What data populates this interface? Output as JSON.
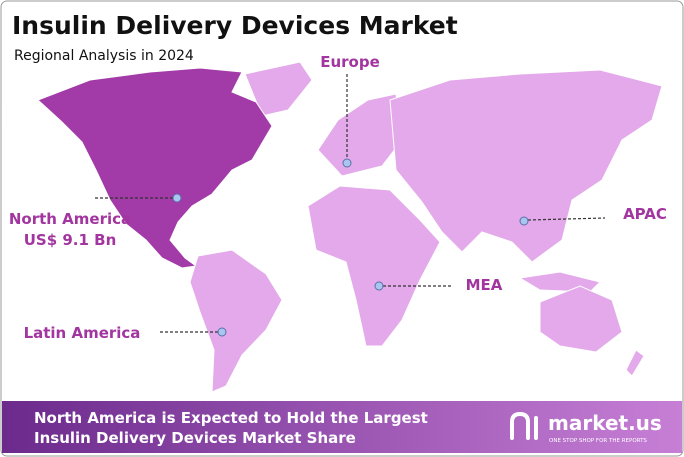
{
  "header": {
    "title": "Insulin Delivery Devices Market",
    "subtitle": "Regional Analysis in 2024"
  },
  "regions": [
    {
      "label": "Europe"
    },
    {
      "label": "North America",
      "value": "US$ 9.1 Bn"
    },
    {
      "label": "APAC"
    },
    {
      "label": "MEA"
    },
    {
      "label": "Latin America"
    }
  ],
  "footer": {
    "lines": [
      "North America is Expected to Hold the Largest",
      "Insulin Delivery Devices Market Share"
    ]
  },
  "logo": {
    "name": "market.us",
    "tagline": "ONE STOP SHOP FOR THE REPORTS"
  }
}
